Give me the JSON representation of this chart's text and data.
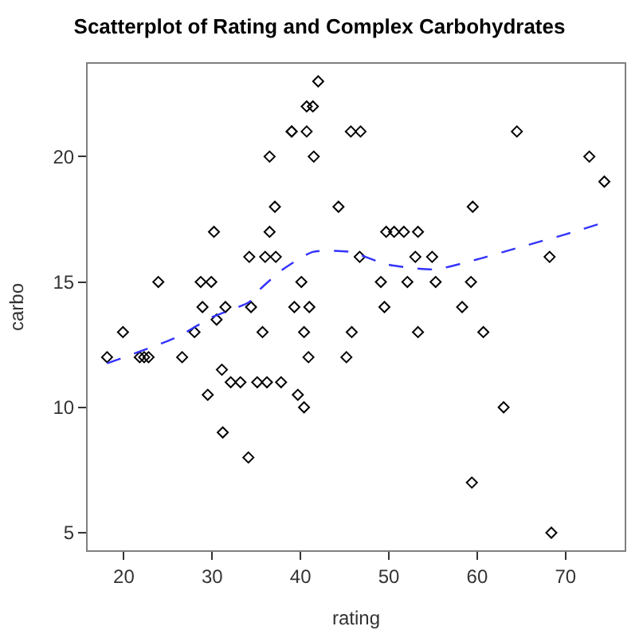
{
  "chart_data": {
    "type": "scatter",
    "title": "Scatterplot of Rating and Complex Carbohydrates",
    "xlabel": "rating",
    "ylabel": "carbo",
    "xlim": [
      15.9,
      76.7
    ],
    "ylim": [
      4.3,
      23.7
    ],
    "xticks": [
      20,
      30,
      40,
      50,
      60,
      70
    ],
    "yticks": [
      5,
      10,
      15,
      20
    ],
    "series": [
      {
        "marker": "diamond",
        "color": "#000000",
        "x": [
          42.0,
          40.7,
          41.4,
          39.0,
          39.0,
          40.7,
          45.7,
          46.8,
          36.5,
          41.5,
          37.1,
          44.3,
          36.5,
          49.7,
          50.6,
          51.7,
          53.3,
          36.0,
          37.2,
          46.7,
          53.0,
          54.9,
          40.1,
          49.1,
          52.1,
          55.3,
          39.3,
          41.0,
          49.5,
          35.7,
          40.4,
          45.8,
          53.3,
          40.9,
          45.2,
          36.2,
          37.8,
          39.7,
          40.4,
          30.2,
          34.2,
          23.9,
          28.7,
          29.9,
          28.9,
          31.5,
          34.4,
          19.9,
          28.0,
          30.5,
          18.1,
          21.8,
          22.3,
          22.8,
          26.6,
          31.1,
          32.1,
          33.2,
          35.1,
          29.5,
          31.2,
          34.1,
          64.5,
          72.7,
          74.4,
          59.5,
          68.2,
          59.3,
          58.3,
          60.7,
          63.0,
          59.4,
          68.4
        ],
        "values": [
          23,
          22,
          22,
          21,
          21,
          21,
          21,
          21,
          20,
          20,
          18,
          18,
          17,
          17,
          17,
          17,
          17,
          16,
          16,
          16,
          16,
          16,
          15,
          15,
          15,
          15,
          14,
          14,
          14,
          13,
          13,
          13,
          13,
          12,
          12,
          11,
          11,
          10.5,
          10,
          17,
          16,
          15,
          15,
          15,
          14,
          14,
          14,
          13,
          13,
          13.5,
          12,
          12,
          12,
          12,
          12,
          11.5,
          11,
          11,
          11,
          10.5,
          9,
          8,
          21,
          20,
          19,
          18,
          16,
          15,
          14,
          13,
          10,
          7,
          5
        ]
      },
      {
        "type": "line",
        "line_style": "dashed",
        "marker": "none",
        "color": "#3333ff",
        "x": [
          18.1,
          26,
          30,
          34.2,
          35.4,
          38,
          41.4,
          45.6,
          49.8,
          55.2,
          60,
          65,
          70,
          73.7
        ],
        "values": [
          11.75,
          12.8,
          13.6,
          14.2,
          14.7,
          15.5,
          16.2,
          16.2,
          15.7,
          15.5,
          15.9,
          16.4,
          16.9,
          17.3
        ]
      }
    ]
  }
}
